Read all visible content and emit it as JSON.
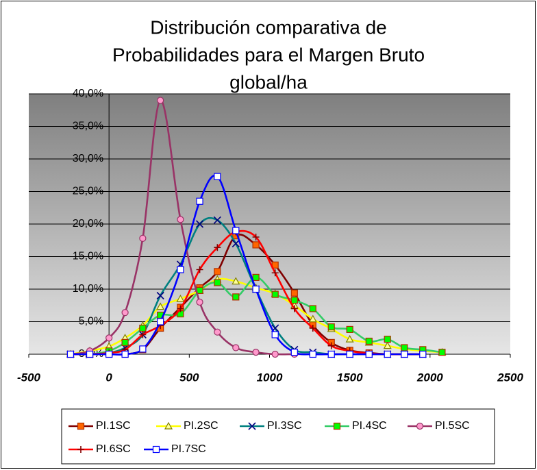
{
  "chart_data": {
    "type": "line",
    "title": [
      "Distribución comparativa de",
      "Probabilidades para el Margen Bruto",
      "global/ha"
    ],
    "xlim": [
      -500,
      2500
    ],
    "xticks": [
      -500,
      0,
      500,
      1000,
      1500,
      2000,
      2500
    ],
    "ylim": [
      0,
      40
    ],
    "yticks": [
      {
        "value": 0,
        "label": "0,0%"
      },
      {
        "value": 5,
        "label": "5,0%"
      },
      {
        "value": 10,
        "label": "10,0%"
      },
      {
        "value": 15,
        "label": "15,0%"
      },
      {
        "value": 20,
        "label": "20,0%"
      },
      {
        "value": 25,
        "label": "25,0%"
      },
      {
        "value": 30,
        "label": "30,0%"
      },
      {
        "value": 35,
        "label": "35,0%"
      },
      {
        "value": 40,
        "label": "40,0%"
      }
    ],
    "grid": true,
    "smooth": true,
    "legend": "bottom",
    "series": [
      {
        "name": "PI.1SC",
        "color": "#800000",
        "marker": "square",
        "marker_color": "#ff6600",
        "x": [
          -240,
          -120,
          0,
          100,
          210,
          320,
          445,
          565,
          675,
          790,
          915,
          1035,
          1155,
          1270,
          1385,
          1500,
          1620,
          1735,
          1840,
          1955
        ],
        "values": [
          0,
          0,
          0,
          0,
          0.7,
          4,
          7.2,
          10.2,
          12.7,
          18.2,
          16.8,
          13.7,
          9.4,
          4.5,
          1.8,
          0.6,
          0.2,
          0,
          0,
          0
        ]
      },
      {
        "name": "PI.2SC",
        "color": "#ffff00",
        "marker": "triangle",
        "marker_color": "#ffff99",
        "x": [
          -240,
          -120,
          0,
          100,
          210,
          320,
          445,
          565,
          675,
          790,
          915,
          1035,
          1155,
          1270,
          1385,
          1500,
          1620,
          1735,
          1840,
          1955,
          2075
        ],
        "values": [
          0,
          0.5,
          1.2,
          2.5,
          4.4,
          7.3,
          8.5,
          9.8,
          11.5,
          11.2,
          10.2,
          9.3,
          7.5,
          5.4,
          3.9,
          2.3,
          1.8,
          1.3,
          0.8,
          0.5,
          0.3
        ]
      },
      {
        "name": "PI.3SC",
        "color": "#008080",
        "marker": "x",
        "marker_color": "#000080",
        "x": [
          -240,
          -120,
          0,
          100,
          210,
          320,
          445,
          565,
          675,
          790,
          915,
          1035,
          1155,
          1270,
          1385,
          1500,
          1620,
          1735,
          1840,
          1955
        ],
        "values": [
          0,
          0,
          0.2,
          1,
          3,
          9,
          13.8,
          20,
          20.6,
          17,
          10,
          4,
          0.7,
          0.3,
          0,
          0,
          0,
          0,
          0,
          0
        ]
      },
      {
        "name": "PI.4SC",
        "color": "#33cc66",
        "marker": "square",
        "marker_color": "#00ff00",
        "x": [
          -240,
          -120,
          0,
          100,
          210,
          320,
          445,
          565,
          675,
          790,
          915,
          1035,
          1155,
          1270,
          1385,
          1500,
          1620,
          1735,
          1840,
          1955,
          2075
        ],
        "values": [
          0,
          0,
          0.5,
          1.8,
          4,
          6,
          6.2,
          9.8,
          11,
          8.8,
          11.8,
          9.2,
          8.3,
          7,
          4.2,
          3.8,
          2,
          2.3,
          1,
          0.7,
          0.3
        ]
      },
      {
        "name": "PI.5SC",
        "color": "#993366",
        "marker": "circle",
        "marker_color": "#ff99cc",
        "x": [
          -240,
          -120,
          0,
          100,
          210,
          320,
          445,
          565,
          675,
          790,
          915,
          1035,
          1155,
          1270,
          1385,
          1500,
          1620,
          1735,
          1840,
          1955
        ],
        "values": [
          0,
          0.5,
          2.5,
          6.4,
          17.8,
          39,
          20.7,
          8,
          3.4,
          1,
          0.3,
          0,
          0,
          0,
          0,
          0,
          0,
          0,
          0,
          0
        ]
      },
      {
        "name": "PI.6SC",
        "color": "#ff0000",
        "marker": "plus",
        "marker_color": "#800000",
        "x": [
          -240,
          -120,
          0,
          100,
          210,
          320,
          445,
          565,
          675,
          790,
          915,
          1035,
          1155,
          1270,
          1385,
          1500,
          1620,
          1735,
          1840,
          1955
        ],
        "values": [
          0,
          0,
          0.2,
          0.7,
          3,
          4.4,
          7,
          13,
          16.4,
          18.8,
          18,
          12.5,
          7,
          4,
          1.3,
          0.5,
          0.1,
          0,
          0,
          0
        ]
      },
      {
        "name": "PI.7SC",
        "color": "#0000ff",
        "marker": "square",
        "marker_color": "#ffffff",
        "x": [
          -240,
          -120,
          0,
          100,
          210,
          320,
          445,
          565,
          675,
          790,
          915,
          1035,
          1155,
          1270,
          1385,
          1500,
          1620,
          1735,
          1840,
          1955
        ],
        "values": [
          0,
          0,
          0,
          0,
          0.8,
          5,
          13,
          23.5,
          27.3,
          19,
          10,
          3,
          0.3,
          0,
          0,
          0,
          0,
          0,
          0,
          0
        ]
      }
    ]
  }
}
